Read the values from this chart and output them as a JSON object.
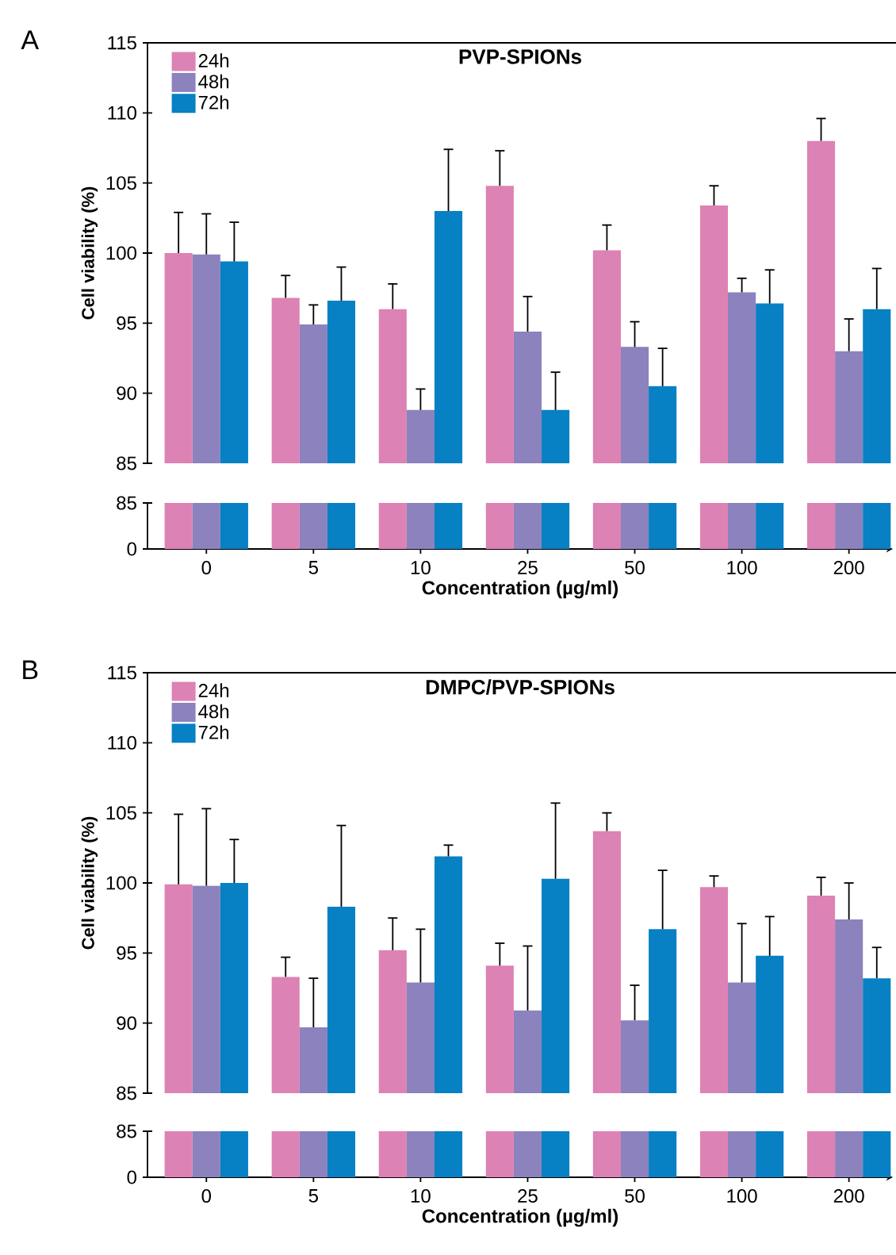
{
  "chart_data": [
    {
      "type": "bar",
      "title": "PVP-SPIONs",
      "ylabel": "Cell viability (%)",
      "annotations": [
        "A"
      ],
      "categories": [
        "0",
        "5",
        "10",
        "25",
        "50",
        "100",
        "200"
      ],
      "ylim": [
        85,
        115
      ],
      "yticks": [
        85,
        90,
        95,
        100,
        105,
        110,
        115
      ],
      "tick_labels": "y",
      "legend": "top left",
      "series": [
        {
          "name": "24h",
          "color": "#dd82b4",
          "values": [
            100.0,
            96.8,
            96.0,
            104.8,
            100.2,
            103.4,
            108.0
          ],
          "errors": [
            [
              100.0,
              102.9
            ],
            [
              96.8,
              98.4
            ],
            [
              96.0,
              97.8
            ],
            [
              104.8,
              107.3
            ],
            [
              100.2,
              102.0
            ],
            [
              103.4,
              104.8
            ],
            [
              108.0,
              109.6
            ]
          ]
        },
        {
          "name": "48h",
          "color": "#8c82bd",
          "values": [
            99.9,
            94.9,
            88.8,
            94.4,
            93.3,
            97.2,
            93.0
          ],
          "errors": [
            [
              99.9,
              102.8
            ],
            [
              94.9,
              96.3
            ],
            [
              88.8,
              90.3
            ],
            [
              94.4,
              96.9
            ],
            [
              93.3,
              95.1
            ],
            [
              97.2,
              98.2
            ],
            [
              93.0,
              95.3
            ]
          ]
        },
        {
          "name": "72h",
          "color": "#0780c4",
          "values": [
            99.4,
            96.6,
            103.0,
            88.8,
            90.5,
            96.4,
            96.0
          ],
          "errors": [
            [
              99.4,
              102.2
            ],
            [
              96.6,
              99.0
            ],
            [
              103.0,
              107.4
            ],
            [
              88.8,
              91.5
            ],
            [
              90.5,
              93.2
            ],
            [
              96.4,
              98.8
            ],
            [
              96.0,
              98.9
            ]
          ]
        }
      ]
    },
    {
      "type": "bar",
      "xlabel": "Concentration (µg/ml)",
      "categories": [
        "0",
        "5",
        "10",
        "25",
        "50",
        "100",
        "200"
      ],
      "ylim": [
        0,
        85
      ],
      "yticks": [
        0,
        85
      ],
      "series": [
        {
          "color": "#dd82b4",
          "values": [
            85,
            85,
            85,
            85,
            85,
            85,
            85
          ]
        },
        {
          "color": "#8c82bd",
          "values": [
            85,
            85,
            85,
            85,
            85,
            85,
            85
          ]
        },
        {
          "color": "#0780c4",
          "values": [
            85,
            85,
            85,
            85,
            85,
            85,
            85
          ]
        }
      ]
    },
    {
      "type": "bar",
      "title": "DMPC/PVP-SPIONs",
      "ylabel": "Cell viability (%)",
      "annotations": [
        "B"
      ],
      "categories": [
        "0",
        "5",
        "10",
        "25",
        "50",
        "100",
        "200"
      ],
      "ylim": [
        85,
        115
      ],
      "yticks": [
        85,
        90,
        95,
        100,
        105,
        110,
        115
      ],
      "tick_labels": "y",
      "legend": "top left",
      "series": [
        {
          "name": "24h",
          "color": "#dd82b4",
          "values": [
            99.9,
            93.3,
            95.2,
            94.1,
            103.7,
            99.7,
            99.1
          ],
          "errors": [
            [
              99.9,
              104.9
            ],
            [
              93.3,
              94.7
            ],
            [
              95.2,
              97.5
            ],
            [
              94.1,
              95.7
            ],
            [
              103.7,
              105.0
            ],
            [
              99.7,
              100.5
            ],
            [
              99.1,
              100.4
            ]
          ]
        },
        {
          "name": "48h",
          "color": "#8c82bd",
          "values": [
            99.8,
            89.7,
            92.9,
            90.9,
            90.2,
            92.9,
            97.4
          ],
          "errors": [
            [
              99.8,
              105.3
            ],
            [
              89.7,
              93.2
            ],
            [
              92.9,
              96.7
            ],
            [
              90.9,
              95.5
            ],
            [
              90.2,
              92.7
            ],
            [
              92.9,
              97.1
            ],
            [
              97.4,
              100.0
            ]
          ]
        },
        {
          "name": "72h",
          "color": "#0780c4",
          "values": [
            100.0,
            98.3,
            101.9,
            100.3,
            96.7,
            94.8,
            93.2
          ],
          "errors": [
            [
              100.0,
              103.1
            ],
            [
              98.3,
              104.1
            ],
            [
              101.9,
              102.7
            ],
            [
              100.3,
              105.7
            ],
            [
              96.7,
              100.9
            ],
            [
              94.8,
              97.6
            ],
            [
              93.2,
              95.4
            ]
          ]
        }
      ]
    },
    {
      "type": "bar",
      "xlabel": "Concentration (µg/ml)",
      "categories": [
        "0",
        "5",
        "10",
        "25",
        "50",
        "100",
        "200"
      ],
      "ylim": [
        0,
        85
      ],
      "yticks": [
        0,
        85
      ],
      "series": [
        {
          "color": "#dd82b4",
          "values": [
            85,
            85,
            85,
            85,
            85,
            85,
            85
          ]
        },
        {
          "color": "#8c82bd",
          "values": [
            85,
            85,
            85,
            85,
            85,
            85,
            85
          ]
        },
        {
          "color": "#0780c4",
          "values": [
            85,
            85,
            85,
            85,
            85,
            85,
            85
          ]
        }
      ]
    }
  ]
}
